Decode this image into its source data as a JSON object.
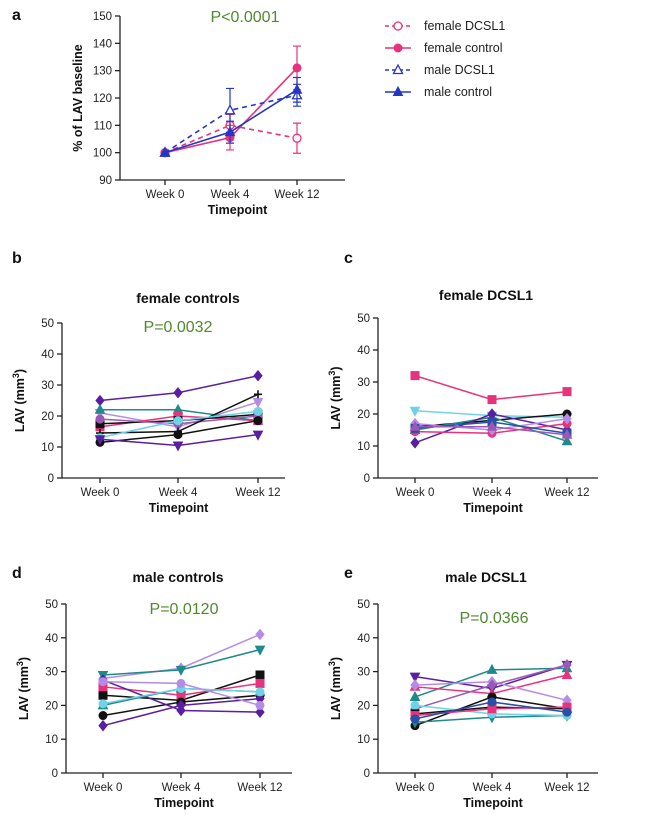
{
  "chart_data": [
    {
      "id": "a",
      "letter": "a",
      "type": "line",
      "title": "",
      "pvalue": "P<0.0001",
      "xlabel": "Timepoint",
      "ylabel": "% of LAV baseline",
      "categories": [
        "Week 0",
        "Week 4",
        "Week 12"
      ],
      "ylim": [
        90,
        150
      ],
      "yticks": [
        90,
        100,
        110,
        120,
        130,
        140,
        150
      ],
      "series": [
        {
          "name": "female DCSL1",
          "color": "#e8327c",
          "marker": "circle-open",
          "dashed": true,
          "values": [
            100,
            110,
            105.3
          ],
          "errors": [
            0,
            4,
            5.5
          ]
        },
        {
          "name": "female control",
          "color": "#e8327c",
          "marker": "circle",
          "dashed": false,
          "values": [
            100,
            105.5,
            131
          ],
          "errors": [
            0,
            4.5,
            8
          ]
        },
        {
          "name": "male DCSL1",
          "color": "#2437c4",
          "marker": "triangle-open",
          "dashed": true,
          "values": [
            100,
            115.5,
            121
          ],
          "errors": [
            0,
            8,
            4
          ]
        },
        {
          "name": "male control",
          "color": "#2437c4",
          "marker": "triangle",
          "dashed": false,
          "values": [
            100,
            107.5,
            123
          ],
          "errors": [
            0,
            4,
            4.5
          ]
        }
      ]
    },
    {
      "id": "b",
      "letter": "b",
      "type": "line",
      "title": "female controls",
      "pvalue": "P=0.0032",
      "xlabel": "Timepoint",
      "ylabel_main": "LAV (mm",
      "ylabel_sup": "3",
      "ylabel_end": ")",
      "categories": [
        "Week 0",
        "Week 4",
        "Week 12"
      ],
      "ylim": [
        0,
        50
      ],
      "yticks": [
        0,
        10,
        20,
        30,
        40,
        50
      ],
      "series": [
        {
          "color": "#5a1fa0",
          "marker": "diamond",
          "values": [
            25,
            27.5,
            33
          ]
        },
        {
          "color": "#b58be8",
          "marker": "triangle-down",
          "values": [
            21,
            16.5,
            24.5
          ]
        },
        {
          "color": "#1f8a8a",
          "marker": "triangle",
          "values": [
            22,
            22,
            18.5
          ]
        },
        {
          "color": "#e8327c",
          "marker": "square",
          "values": [
            16.5,
            20,
            18.5
          ]
        },
        {
          "color": "#111111",
          "marker": "square",
          "values": [
            17.5,
            18.5,
            20.5
          ]
        },
        {
          "color": "#9b59b6",
          "marker": "circle",
          "values": [
            19,
            17.5,
            20
          ]
        },
        {
          "color": "#111111",
          "marker": "plus",
          "values": [
            14.5,
            15,
            27
          ]
        },
        {
          "color": "#6fd3e8",
          "marker": "circle",
          "values": [
            13,
            18.5,
            21.5
          ]
        },
        {
          "color": "#111111",
          "marker": "circle",
          "values": [
            11.5,
            14,
            18.5
          ]
        },
        {
          "color": "#5a1fa0",
          "marker": "triangle-down",
          "values": [
            12.5,
            10.5,
            14
          ]
        }
      ]
    },
    {
      "id": "c",
      "letter": "c",
      "type": "line",
      "title": "female DCSL1",
      "pvalue": "",
      "xlabel": "Timepoint",
      "ylabel_main": "LAV (mm",
      "ylabel_sup": "3",
      "ylabel_end": ")",
      "categories": [
        "Week 0",
        "Week 4",
        "Week 12"
      ],
      "ylim": [
        0,
        50
      ],
      "yticks": [
        0,
        10,
        20,
        30,
        40,
        50
      ],
      "series": [
        {
          "color": "#e8327c",
          "marker": "square",
          "values": [
            32,
            24.5,
            27
          ]
        },
        {
          "color": "#6fd3e8",
          "marker": "triangle-down",
          "values": [
            21,
            19.5,
            19
          ]
        },
        {
          "color": "#111111",
          "marker": "circle",
          "values": [
            16,
            18,
            20
          ]
        },
        {
          "color": "#1f8a8a",
          "marker": "triangle",
          "values": [
            15,
            19,
            11.5
          ]
        },
        {
          "color": "#5a1fa0",
          "marker": "diamond",
          "values": [
            11,
            20,
            15
          ]
        },
        {
          "color": "#e8327c",
          "marker": "circle",
          "values": [
            14.5,
            14,
            17
          ]
        },
        {
          "color": "#b58be8",
          "marker": "diamond",
          "values": [
            17,
            15,
            18.5
          ]
        },
        {
          "color": "#2a4fa8",
          "marker": "square",
          "values": [
            15.5,
            17.5,
            14
          ]
        },
        {
          "color": "#9b59b6",
          "marker": "triangle",
          "values": [
            16,
            16,
            13.5
          ]
        }
      ]
    },
    {
      "id": "d",
      "letter": "d",
      "type": "line",
      "title": "male controls",
      "pvalue": "P=0.0120",
      "xlabel": "Timepoint",
      "ylabel_main": "LAV (mm",
      "ylabel_sup": "3",
      "ylabel_end": ")",
      "categories": [
        "Week 0",
        "Week 4",
        "Week 12"
      ],
      "ylim": [
        0,
        50
      ],
      "yticks": [
        0,
        10,
        20,
        30,
        40,
        50
      ],
      "series": [
        {
          "color": "#b58be8",
          "marker": "diamond",
          "values": [
            28,
            31,
            41
          ]
        },
        {
          "color": "#1f8a8a",
          "marker": "triangle-down",
          "values": [
            29,
            30.5,
            36.5
          ]
        },
        {
          "color": "#111111",
          "marker": "square",
          "values": [
            23,
            21.5,
            29
          ]
        },
        {
          "color": "#e8327c",
          "marker": "square",
          "values": [
            25.5,
            23,
            26.5
          ]
        },
        {
          "color": "#111111",
          "marker": "circle",
          "values": [
            17,
            21,
            23
          ]
        },
        {
          "color": "#5a1fa0",
          "marker": "diamond",
          "values": [
            14,
            20,
            22
          ]
        },
        {
          "color": "#5a1fa0",
          "marker": "diamond",
          "values": [
            27.5,
            18.5,
            18
          ]
        },
        {
          "color": "#1f8a8a",
          "marker": "triangle",
          "values": [
            20,
            25,
            24
          ]
        },
        {
          "color": "#6fd3e8",
          "marker": "circle",
          "values": [
            20.5,
            25,
            24
          ]
        },
        {
          "color": "#b58be8",
          "marker": "circle",
          "values": [
            27,
            26.5,
            20
          ]
        }
      ]
    },
    {
      "id": "e",
      "letter": "e",
      "type": "line",
      "title": "male DCSL1",
      "pvalue": "P=0.0366",
      "xlabel": "Timepoint",
      "ylabel_main": "LAV (mm",
      "ylabel_sup": "3",
      "ylabel_end": ")",
      "categories": [
        "Week 0",
        "Week 4",
        "Week 12"
      ],
      "ylim": [
        0,
        50
      ],
      "yticks": [
        0,
        10,
        20,
        30,
        40,
        50
      ],
      "series": [
        {
          "color": "#5a1fa0",
          "marker": "triangle-down",
          "values": [
            28.5,
            25,
            32
          ]
        },
        {
          "color": "#1f8a8a",
          "marker": "triangle",
          "values": [
            22.5,
            30.5,
            31
          ]
        },
        {
          "color": "#e8327c",
          "marker": "triangle",
          "values": [
            25.5,
            23.5,
            29
          ]
        },
        {
          "color": "#b58be8",
          "marker": "diamond",
          "values": [
            26,
            27,
            21.5
          ]
        },
        {
          "color": "#9b59b6",
          "marker": "diamond",
          "values": [
            19,
            26,
            32
          ]
        },
        {
          "color": "#111111",
          "marker": "circle",
          "values": [
            14,
            22.5,
            19
          ]
        },
        {
          "color": "#1f8a8a",
          "marker": "triangle-down",
          "values": [
            15,
            16.5,
            17
          ]
        },
        {
          "color": "#6fd3e8",
          "marker": "circle",
          "values": [
            20,
            17.5,
            17
          ]
        },
        {
          "color": "#111111",
          "marker": "square",
          "values": [
            17.5,
            19.5,
            19
          ]
        },
        {
          "color": "#e8327c",
          "marker": "square",
          "values": [
            17,
            19,
            19.5
          ]
        },
        {
          "color": "#2a4fa8",
          "marker": "circle",
          "values": [
            16,
            21,
            18
          ]
        }
      ]
    }
  ]
}
